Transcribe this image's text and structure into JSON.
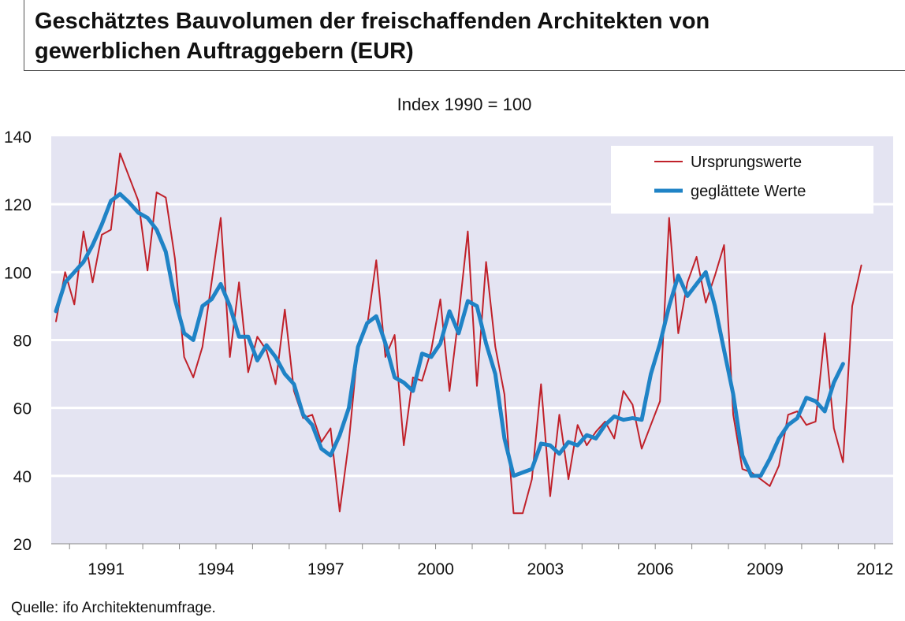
{
  "header": {
    "title_line1": "Geschätztes Bauvolumen der freischaffenden Architekten von",
    "title_line2": "gewerblichen Auftraggebern (EUR)"
  },
  "footer": {
    "source": "Quelle: ifo Architektenumfrage."
  },
  "colors": {
    "raw": "#c0212a",
    "smoothed": "#1f83c6",
    "plot_bg": "#e4e4f2",
    "grid": "#ffffff"
  },
  "chart_data": {
    "type": "line",
    "subtitle": "Index 1990 = 100",
    "xlabel": "",
    "ylabel": "",
    "ylim": [
      20,
      140
    ],
    "yticks": [
      20,
      40,
      60,
      80,
      100,
      120,
      140
    ],
    "xlim": [
      1989.5,
      2012.5
    ],
    "xticks": [
      1991,
      1994,
      1997,
      2000,
      2003,
      2006,
      2009,
      2012
    ],
    "grid": true,
    "legend_position": "top-right",
    "series": [
      {
        "name": "Ursprungswerte",
        "points": [
          [
            1989.63,
            85.5
          ],
          [
            1989.88,
            100
          ],
          [
            1990.13,
            90.5
          ],
          [
            1990.38,
            112
          ],
          [
            1990.63,
            97
          ],
          [
            1990.88,
            111
          ],
          [
            1991.13,
            112.5
          ],
          [
            1991.38,
            135
          ],
          [
            1991.63,
            128
          ],
          [
            1991.88,
            121
          ],
          [
            1992.13,
            100.5
          ],
          [
            1992.38,
            123.5
          ],
          [
            1992.63,
            122
          ],
          [
            1992.88,
            104
          ],
          [
            1993.13,
            75
          ],
          [
            1993.38,
            69
          ],
          [
            1993.63,
            78
          ],
          [
            1993.88,
            97
          ],
          [
            1994.13,
            116
          ],
          [
            1994.38,
            75
          ],
          [
            1994.63,
            97
          ],
          [
            1994.88,
            70.5
          ],
          [
            1995.13,
            81
          ],
          [
            1995.38,
            77
          ],
          [
            1995.63,
            67
          ],
          [
            1995.88,
            89
          ],
          [
            1996.13,
            65
          ],
          [
            1996.38,
            57
          ],
          [
            1996.63,
            58
          ],
          [
            1996.88,
            50
          ],
          [
            1997.13,
            54
          ],
          [
            1997.38,
            29.5
          ],
          [
            1997.63,
            50
          ],
          [
            1997.88,
            78
          ],
          [
            1998.13,
            84
          ],
          [
            1998.38,
            103.5
          ],
          [
            1998.63,
            75
          ],
          [
            1998.88,
            81.5
          ],
          [
            1999.13,
            49
          ],
          [
            1999.38,
            69
          ],
          [
            1999.63,
            68
          ],
          [
            1999.88,
            77
          ],
          [
            2000.13,
            92
          ],
          [
            2000.38,
            65
          ],
          [
            2000.63,
            87
          ],
          [
            2000.88,
            112
          ],
          [
            2001.13,
            66.5
          ],
          [
            2001.38,
            103
          ],
          [
            2001.63,
            78
          ],
          [
            2001.88,
            64
          ],
          [
            2002.13,
            29
          ],
          [
            2002.38,
            29
          ],
          [
            2002.63,
            39
          ],
          [
            2002.88,
            67
          ],
          [
            2003.13,
            34
          ],
          [
            2003.38,
            58
          ],
          [
            2003.63,
            39
          ],
          [
            2003.88,
            55
          ],
          [
            2004.13,
            49
          ],
          [
            2004.38,
            53
          ],
          [
            2004.63,
            56
          ],
          [
            2004.88,
            51
          ],
          [
            2005.13,
            65
          ],
          [
            2005.38,
            61
          ],
          [
            2005.63,
            48
          ],
          [
            2005.88,
            55
          ],
          [
            2006.13,
            62
          ],
          [
            2006.38,
            116
          ],
          [
            2006.63,
            82
          ],
          [
            2006.88,
            97
          ],
          [
            2007.13,
            104.5
          ],
          [
            2007.38,
            91
          ],
          [
            2007.63,
            99
          ],
          [
            2007.88,
            108
          ],
          [
            2008.13,
            58
          ],
          [
            2008.38,
            42
          ],
          [
            2008.63,
            41
          ],
          [
            2008.88,
            39
          ],
          [
            2009.13,
            37
          ],
          [
            2009.38,
            43
          ],
          [
            2009.63,
            58
          ],
          [
            2009.88,
            59
          ],
          [
            2010.13,
            55
          ],
          [
            2010.38,
            56
          ],
          [
            2010.63,
            82
          ],
          [
            2010.88,
            54
          ],
          [
            2011.13,
            44
          ],
          [
            2011.38,
            90
          ],
          [
            2011.63,
            102
          ]
        ]
      },
      {
        "name": "geglättete Werte",
        "points": [
          [
            1989.63,
            88.5
          ],
          [
            1989.88,
            97
          ],
          [
            1990.13,
            100
          ],
          [
            1990.38,
            103
          ],
          [
            1990.63,
            108
          ],
          [
            1990.88,
            114
          ],
          [
            1991.13,
            121
          ],
          [
            1991.38,
            123
          ],
          [
            1991.63,
            120.5
          ],
          [
            1991.88,
            117.5
          ],
          [
            1992.13,
            116
          ],
          [
            1992.38,
            112.5
          ],
          [
            1992.63,
            106
          ],
          [
            1992.88,
            92
          ],
          [
            1993.13,
            82
          ],
          [
            1993.38,
            80
          ],
          [
            1993.63,
            90
          ],
          [
            1993.88,
            92
          ],
          [
            1994.13,
            96.5
          ],
          [
            1994.38,
            90
          ],
          [
            1994.63,
            81
          ],
          [
            1994.88,
            81
          ],
          [
            1995.13,
            74
          ],
          [
            1995.38,
            78.5
          ],
          [
            1995.63,
            75
          ],
          [
            1995.88,
            70
          ],
          [
            1996.13,
            67
          ],
          [
            1996.38,
            58
          ],
          [
            1996.63,
            55
          ],
          [
            1996.88,
            48
          ],
          [
            1997.13,
            46
          ],
          [
            1997.38,
            52
          ],
          [
            1997.63,
            60
          ],
          [
            1997.88,
            78
          ],
          [
            1998.13,
            85
          ],
          [
            1998.38,
            87
          ],
          [
            1998.63,
            79
          ],
          [
            1998.88,
            69
          ],
          [
            1999.13,
            67.5
          ],
          [
            1999.38,
            65
          ],
          [
            1999.63,
            76
          ],
          [
            1999.88,
            75
          ],
          [
            2000.13,
            79
          ],
          [
            2000.38,
            88.5
          ],
          [
            2000.63,
            82
          ],
          [
            2000.88,
            91.5
          ],
          [
            2001.13,
            90
          ],
          [
            2001.38,
            79
          ],
          [
            2001.63,
            70
          ],
          [
            2001.88,
            51
          ],
          [
            2002.13,
            40
          ],
          [
            2002.38,
            41
          ],
          [
            2002.63,
            42
          ],
          [
            2002.88,
            49.5
          ],
          [
            2003.13,
            49
          ],
          [
            2003.38,
            46.5
          ],
          [
            2003.63,
            50
          ],
          [
            2003.88,
            49
          ],
          [
            2004.13,
            52
          ],
          [
            2004.38,
            51
          ],
          [
            2004.63,
            55
          ],
          [
            2004.88,
            57.5
          ],
          [
            2005.13,
            56.5
          ],
          [
            2005.38,
            57
          ],
          [
            2005.63,
            56.5
          ],
          [
            2005.88,
            70
          ],
          [
            2006.13,
            79
          ],
          [
            2006.38,
            90
          ],
          [
            2006.63,
            99
          ],
          [
            2006.88,
            93
          ],
          [
            2007.13,
            96.5
          ],
          [
            2007.38,
            100
          ],
          [
            2007.63,
            90
          ],
          [
            2007.88,
            77
          ],
          [
            2008.13,
            64
          ],
          [
            2008.38,
            46
          ],
          [
            2008.63,
            40
          ],
          [
            2008.88,
            40
          ],
          [
            2009.13,
            45
          ],
          [
            2009.38,
            51
          ],
          [
            2009.63,
            55
          ],
          [
            2009.88,
            57
          ],
          [
            2010.13,
            63
          ],
          [
            2010.38,
            62
          ],
          [
            2010.63,
            59
          ],
          [
            2010.88,
            67.5
          ],
          [
            2011.13,
            73
          ]
        ]
      }
    ]
  }
}
